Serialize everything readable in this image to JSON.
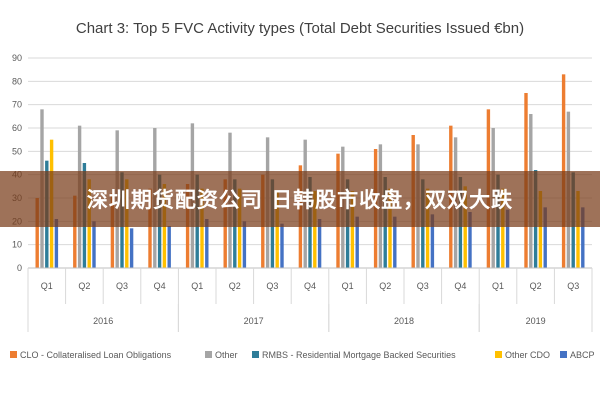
{
  "chart_data": {
    "type": "bar",
    "title": "Chart 3: Top 5 FVC Activity types (Total Debt Securities Issued €bn)",
    "ylim": [
      0,
      90
    ],
    "yticks": [
      0,
      10,
      20,
      30,
      40,
      50,
      60,
      70,
      80,
      90
    ],
    "grid": true,
    "legend_position": "bottom",
    "categories": [
      "Q1",
      "Q2",
      "Q3",
      "Q4",
      "Q1",
      "Q2",
      "Q3",
      "Q4",
      "Q1",
      "Q2",
      "Q3",
      "Q4",
      "Q1",
      "Q2",
      "Q3"
    ],
    "groups": [
      {
        "label": "2016",
        "count": 4
      },
      {
        "label": "2017",
        "count": 4
      },
      {
        "label": "2018",
        "count": 4
      },
      {
        "label": "2019",
        "count": 3
      }
    ],
    "series": [
      {
        "name": "CLO - Collateralised Loan Obligations",
        "color": "#ed7d31",
        "values": [
          30,
          31,
          32,
          34,
          36,
          38,
          40,
          44,
          49,
          51,
          57,
          61,
          68,
          75,
          83
        ]
      },
      {
        "name": "Other",
        "color": "#a5a5a5",
        "values": [
          68,
          61,
          59,
          60,
          62,
          58,
          56,
          55,
          52,
          53,
          53,
          56,
          60,
          66,
          67
        ]
      },
      {
        "name": "RMBS - Residential Mortgage Backed Securities",
        "color": "#2e7d99",
        "values": [
          46,
          45,
          41,
          40,
          40,
          38,
          38,
          39,
          38,
          39,
          38,
          39,
          40,
          42,
          41
        ]
      },
      {
        "name": "Other CDO",
        "color": "#ffc000",
        "values": [
          55,
          38,
          38,
          36,
          34,
          34,
          33,
          33,
          33,
          34,
          34,
          35,
          34,
          33,
          33
        ]
      },
      {
        "name": "ABCP",
        "color": "#4472c4",
        "values": [
          21,
          20,
          17,
          18,
          21,
          20,
          19,
          21,
          22,
          22,
          23,
          24,
          25,
          26,
          26
        ]
      }
    ]
  },
  "overlay": {
    "text": "深圳期货配资公司 日韩股市收盘，双双大跌"
  }
}
